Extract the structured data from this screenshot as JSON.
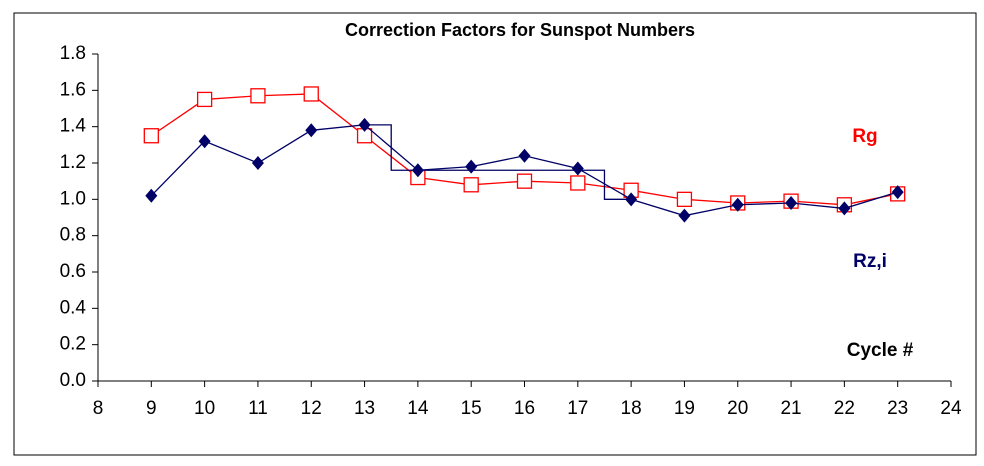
{
  "chart_data": {
    "type": "line",
    "title": "Correction Factors for Sunspot Numbers",
    "x": [
      9,
      10,
      11,
      12,
      13,
      14,
      15,
      16,
      17,
      18,
      19,
      20,
      21,
      22,
      23
    ],
    "series": [
      {
        "name": "Rg",
        "color": "#ff0000",
        "marker": "square",
        "values": [
          1.35,
          1.55,
          1.57,
          1.58,
          1.35,
          1.12,
          1.08,
          1.1,
          1.09,
          1.05,
          1.0,
          0.98,
          0.99,
          0.97,
          1.03
        ]
      },
      {
        "name": "Rz,i",
        "color": "#000066",
        "marker": "diamond",
        "values": [
          1.02,
          1.32,
          1.2,
          1.38,
          1.41,
          1.16,
          1.18,
          1.24,
          1.17,
          1.0,
          0.91,
          0.97,
          0.98,
          0.95,
          1.04
        ]
      },
      {
        "color": "#000066",
        "marker": "none",
        "x": [
          13,
          13.5,
          13.5,
          17.5,
          17.5,
          18
        ],
        "values": [
          1.41,
          1.41,
          1.16,
          1.16,
          1.0,
          1.0
        ]
      }
    ],
    "annotations": [
      "Cycle #"
    ],
    "xlim": [
      8,
      24
    ],
    "xticks": [
      8,
      9,
      10,
      11,
      12,
      13,
      14,
      15,
      16,
      17,
      18,
      19,
      20,
      21,
      22,
      23,
      24
    ],
    "ylim": [
      0,
      1.8
    ],
    "yticks": [
      {
        "value": 0,
        "label": "0.0"
      },
      0.2,
      0.4,
      0.6,
      0.8,
      {
        "value": 1,
        "label": "1.0"
      },
      1.2,
      1.4,
      1.6,
      1.8
    ],
    "grid": false
  }
}
